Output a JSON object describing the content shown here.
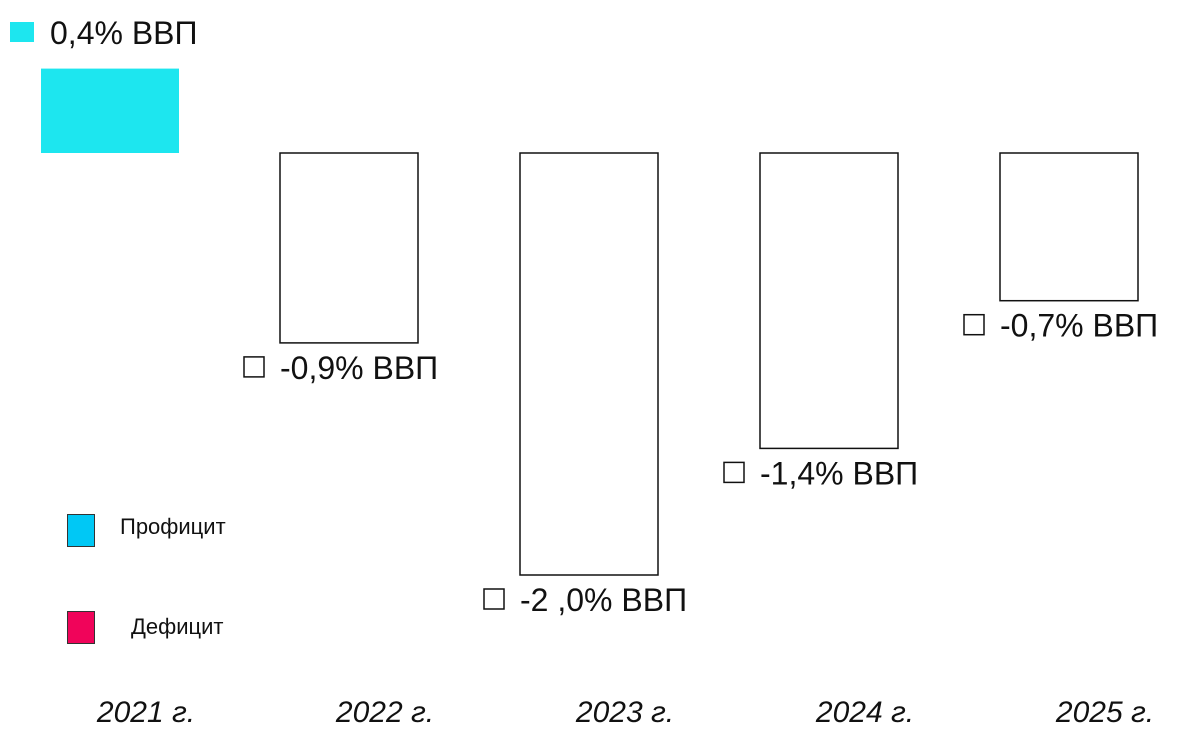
{
  "chart_data": {
    "type": "bar",
    "categories": [
      "2021 г.",
      "2022 г.",
      "2023 г.",
      "2024 г.",
      "2025 г."
    ],
    "values": [
      0.4,
      -0.9,
      -2.0,
      -1.4,
      -0.7
    ],
    "data_labels": [
      "0,4% ВВП",
      "-0,9% ВВП",
      "-2 ,0% ВВП",
      "-1,4% ВВП",
      "-0,7% ВВП"
    ],
    "legend": [
      {
        "name": "Профицит",
        "color": "#00c8f5"
      },
      {
        "name": "Дефицит",
        "color": "#f0045a"
      }
    ],
    "legend_position": "left",
    "surplus_bar_color": "#1de6ef",
    "deficit_bar_color": "#ffffff",
    "ylim": [
      -2.0,
      0.4
    ],
    "grid": false,
    "title": "",
    "xlabel": "",
    "ylabel": ""
  }
}
